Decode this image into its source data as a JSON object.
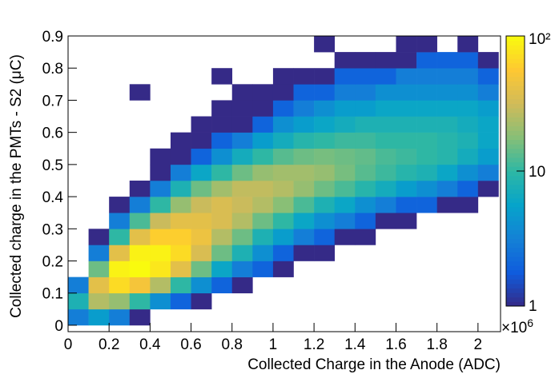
{
  "chart_data": {
    "type": "heatmap",
    "xlabel": "Collected Charge in the Anode (ADC)",
    "ylabel": "Collected charge in the PMTs - S2 (μC)",
    "x_multiplier": {
      "base": "×10",
      "exponent": "6"
    },
    "xlim": [
      0,
      2.11
    ],
    "ylim": [
      -0.02,
      0.9
    ],
    "xticks": [
      0,
      0.2,
      0.4,
      0.6,
      0.8,
      1,
      1.2,
      1.4,
      1.6,
      1.8,
      2
    ],
    "yticks": [
      0,
      0.1,
      0.2,
      0.3,
      0.4,
      0.5,
      0.6,
      0.7,
      0.8,
      0.9
    ],
    "xbins": [
      0,
      0.1,
      0.2,
      0.3,
      0.4,
      0.5,
      0.6,
      0.7,
      0.8,
      0.9,
      1,
      1.1,
      1.2,
      1.3,
      1.4,
      1.5,
      1.6,
      1.7,
      1.8,
      1.9,
      2,
      2.1
    ],
    "ybins": [
      0,
      0.05,
      0.1,
      0.15,
      0.2,
      0.25,
      0.3,
      0.35,
      0.4,
      0.45,
      0.5,
      0.55,
      0.6,
      0.65,
      0.7,
      0.75,
      0.8,
      0.85,
      0.9
    ],
    "z": [
      [
        3,
        5,
        3,
        1,
        null,
        null,
        null,
        null,
        null,
        null,
        null,
        null,
        null,
        null,
        null,
        null,
        null,
        null,
        null,
        null,
        null
      ],
      [
        8,
        25,
        20,
        10,
        4,
        2,
        1,
        null,
        null,
        null,
        null,
        null,
        null,
        null,
        null,
        null,
        null,
        null,
        null,
        null,
        null
      ],
      [
        3,
        40,
        70,
        50,
        25,
        10,
        4,
        2,
        1,
        null,
        null,
        null,
        null,
        null,
        null,
        null,
        null,
        null,
        null,
        null,
        null
      ],
      [
        null,
        15,
        90,
        100,
        80,
        40,
        15,
        6,
        3,
        2,
        1,
        null,
        null,
        null,
        null,
        null,
        null,
        null,
        null,
        null,
        null
      ],
      [
        null,
        3,
        40,
        90,
        90,
        70,
        35,
        15,
        8,
        4,
        2,
        1,
        1,
        null,
        null,
        null,
        null,
        null,
        null,
        null,
        null
      ],
      [
        null,
        1,
        10,
        40,
        60,
        60,
        45,
        25,
        15,
        8,
        5,
        3,
        2,
        1,
        1,
        null,
        null,
        null,
        null,
        null,
        null
      ],
      [
        null,
        null,
        3,
        12,
        30,
        40,
        40,
        35,
        25,
        15,
        10,
        6,
        4,
        3,
        2,
        1,
        1,
        null,
        null,
        null,
        null
      ],
      [
        null,
        null,
        1,
        3,
        10,
        20,
        30,
        35,
        30,
        25,
        18,
        12,
        8,
        6,
        4,
        3,
        2,
        2,
        1,
        1,
        null
      ],
      [
        null,
        null,
        null,
        1,
        3,
        8,
        15,
        22,
        28,
        28,
        25,
        20,
        15,
        12,
        9,
        7,
        5,
        4,
        3,
        2,
        1
      ],
      [
        null,
        null,
        null,
        null,
        1,
        3,
        6,
        10,
        15,
        20,
        22,
        22,
        20,
        16,
        13,
        11,
        9,
        8,
        6,
        4,
        3
      ],
      [
        null,
        null,
        null,
        null,
        1,
        1,
        2,
        4,
        7,
        10,
        13,
        15,
        16,
        15,
        14,
        12,
        11,
        10,
        9,
        7,
        5
      ],
      [
        null,
        null,
        null,
        null,
        null,
        1,
        1,
        2,
        3,
        5,
        7,
        9,
        10,
        11,
        11,
        10,
        10,
        10,
        9,
        8,
        6
      ],
      [
        null,
        null,
        null,
        null,
        null,
        null,
        1,
        1,
        1,
        2,
        4,
        5,
        6,
        7,
        8,
        8,
        8,
        8,
        8,
        7,
        6
      ],
      [
        null,
        null,
        null,
        null,
        null,
        null,
        null,
        1,
        1,
        1,
        2,
        3,
        4,
        5,
        5,
        6,
        6,
        6,
        6,
        6,
        5
      ],
      [
        null,
        null,
        null,
        1,
        null,
        null,
        null,
        null,
        1,
        1,
        1,
        2,
        2,
        3,
        3,
        4,
        4,
        4,
        4,
        4,
        3
      ],
      [
        null,
        null,
        null,
        null,
        null,
        null,
        null,
        1,
        null,
        null,
        1,
        1,
        1,
        2,
        2,
        2,
        3,
        3,
        3,
        3,
        2
      ],
      [
        null,
        null,
        null,
        null,
        null,
        null,
        null,
        null,
        null,
        null,
        null,
        null,
        null,
        1,
        1,
        1,
        1,
        2,
        2,
        2,
        1
      ],
      [
        null,
        null,
        null,
        null,
        null,
        null,
        null,
        null,
        null,
        null,
        null,
        null,
        1,
        null,
        null,
        null,
        1,
        1,
        null,
        1,
        null
      ]
    ],
    "zlim": [
      1,
      100
    ],
    "zlog": true,
    "zticks": [
      1,
      10,
      {
        "value": 100,
        "label": "10²"
      }
    ],
    "colormap": [
      "#352a87",
      "#0f5cdd",
      "#1481d6",
      "#06a4ca",
      "#2eb7a4",
      "#87bf77",
      "#d1bb59",
      "#fec832",
      "#f9fb0e"
    ]
  }
}
